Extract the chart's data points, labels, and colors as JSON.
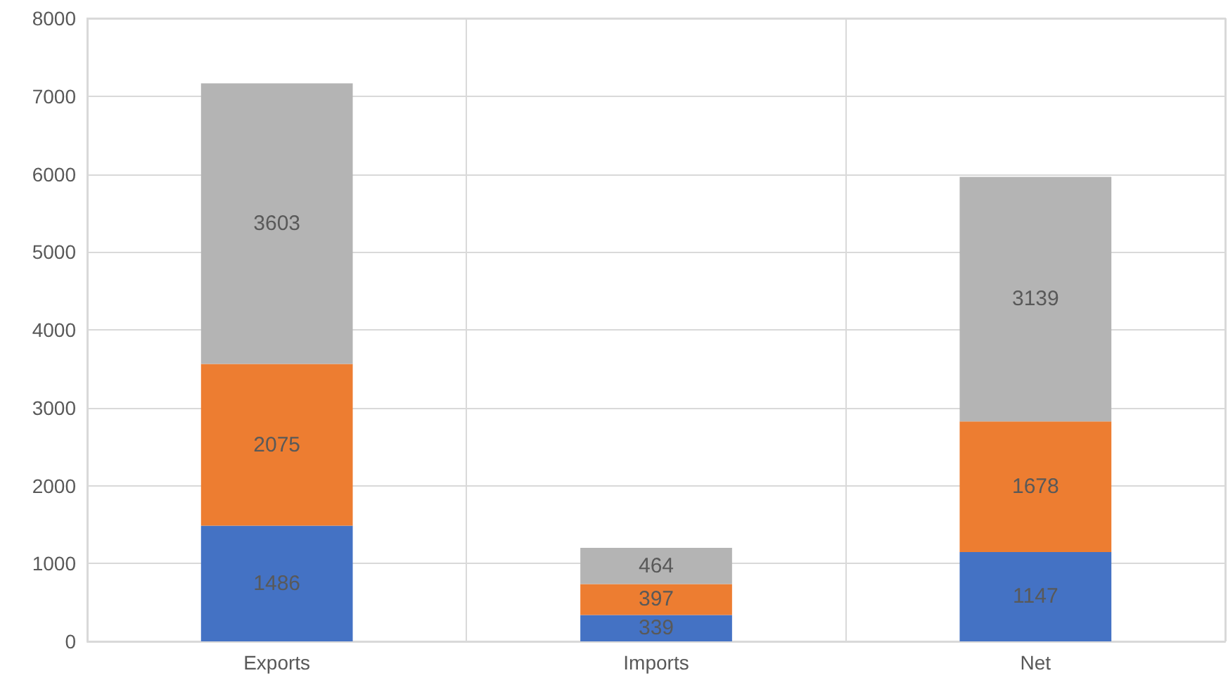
{
  "chart_data": {
    "type": "bar",
    "stacked": true,
    "categories": [
      "Exports",
      "Imports",
      "Net"
    ],
    "series": [
      {
        "color": "#4472c4",
        "values": [
          1486,
          339,
          1147
        ]
      },
      {
        "color": "#ed7d31",
        "values": [
          2075,
          397,
          1678
        ]
      },
      {
        "color": "#b4b4b4",
        "values": [
          3603,
          464,
          3139
        ]
      }
    ],
    "ylim": [
      0,
      8000
    ],
    "yticks": [
      0,
      1000,
      2000,
      3000,
      4000,
      5000,
      6000,
      7000,
      8000
    ],
    "grid": true,
    "data_labels": true
  }
}
